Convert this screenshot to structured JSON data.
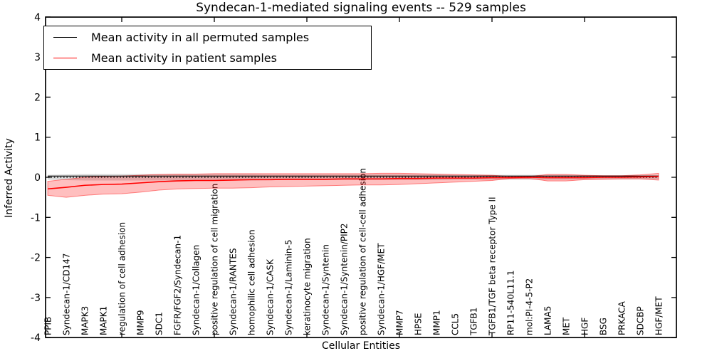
{
  "chart_data": {
    "type": "line",
    "title": "Syndecan-1-mediated signaling events -- 529 samples",
    "xlabel": "Cellular Entities",
    "ylabel": "Inferred Activity",
    "ylim": [
      -4,
      4
    ],
    "yticks": [
      4,
      3,
      2,
      1,
      0,
      -1,
      -2,
      -3,
      -4
    ],
    "xtick_major_indices": [
      4,
      9,
      14,
      19,
      24,
      29
    ],
    "grid": false,
    "legend_position": "upper left",
    "legend": [
      {
        "label": "Mean activity in all permuted samples",
        "color": "#000000"
      },
      {
        "label": "Mean activity in patient samples",
        "color": "#ff0000"
      }
    ],
    "categories": [
      "PPIB",
      "Syndecan-1/CD147",
      "MAPK3",
      "MAPK1",
      "regulation of cell adhesion",
      "MMP9",
      "SDC1",
      "FGFR/FGF2/Syndecan-1",
      "Syndecan-1/Collagen",
      "positive regulation of cell migration",
      "Syndecan-1/RANTES",
      "homophilic cell adhesion",
      "Syndecan-1/CASK",
      "Syndecan-1/Laminin-5",
      "keratinocyte migration",
      "Syndecan-1/Syntenin",
      "Syndecan-1/Syntenin/PIP2",
      "positive regulation of cell-cell adhesion",
      "Syndecan-1/HGF/MET",
      "MMP7",
      "HPSE",
      "MMP1",
      "CCL5",
      "TGFB1",
      "TGFB1/TGF beta receptor Type II",
      "RP11-540L11.1",
      "mol:PI-4-5-P2",
      "LAMA5",
      "MET",
      "HGF",
      "BSG",
      "PRKACA",
      "SDCBP",
      "HGF/MET"
    ],
    "series": [
      {
        "name": "zero-baseline",
        "color": "#000000",
        "style": "dotted",
        "width": 1.3,
        "constant": 0
      },
      {
        "name": "Mean activity in all permuted samples",
        "color": "#000000",
        "style": "solid",
        "width": 1.2,
        "constant": 0.03
      },
      {
        "name": "Mean activity in patient samples",
        "color": "#ff0000",
        "style": "solid",
        "width": 1.6,
        "values": [
          -0.29,
          -0.25,
          -0.2,
          -0.18,
          -0.17,
          -0.14,
          -0.11,
          -0.09,
          -0.08,
          -0.08,
          -0.07,
          -0.06,
          -0.06,
          -0.05,
          -0.05,
          -0.05,
          -0.04,
          -0.04,
          -0.04,
          -0.03,
          -0.03,
          -0.02,
          -0.02,
          -0.02,
          -0.01,
          -0.01,
          0.0,
          -0.01,
          -0.01,
          -0.01,
          0.0,
          0.0,
          0.01,
          0.02
        ]
      }
    ],
    "bands": [
      {
        "name": "permuted-samples-range",
        "color": "#000000",
        "opacity": 0.15,
        "edge_opacity": 0,
        "high": [
          0.06,
          0.07,
          0.08,
          0.08,
          0.08,
          0.08,
          0.08,
          0.08,
          0.08,
          0.08,
          0.08,
          0.08,
          0.07,
          0.07,
          0.07,
          0.07,
          0.07,
          0.07,
          0.07,
          0.07,
          0.07,
          0.07,
          0.06,
          0.06,
          0.06,
          0.06,
          0.06,
          0.06,
          0.06,
          0.05,
          0.05,
          0.05,
          0.05,
          0.05
        ],
        "low": [
          -0.06,
          -0.07,
          -0.08,
          -0.08,
          -0.08,
          -0.08,
          -0.08,
          -0.08,
          -0.08,
          -0.08,
          -0.08,
          -0.08,
          -0.07,
          -0.07,
          -0.07,
          -0.07,
          -0.07,
          -0.07,
          -0.07,
          -0.07,
          -0.07,
          -0.07,
          -0.06,
          -0.06,
          -0.06,
          -0.06,
          -0.06,
          -0.06,
          -0.06,
          -0.05,
          -0.05,
          -0.05,
          -0.05,
          -0.05
        ]
      },
      {
        "name": "patient-samples-range",
        "color": "#ff0000",
        "opacity": 0.25,
        "edge_opacity": 0.45,
        "high": [
          -0.1,
          -0.05,
          0.0,
          0.02,
          0.03,
          0.05,
          0.07,
          0.08,
          0.08,
          0.09,
          0.09,
          0.09,
          0.09,
          0.09,
          0.09,
          0.09,
          0.09,
          0.09,
          0.1,
          0.1,
          0.09,
          0.08,
          0.07,
          0.06,
          0.05,
          0.02,
          0.02,
          0.07,
          0.07,
          0.05,
          0.04,
          0.04,
          0.06,
          0.1
        ],
        "low": [
          -0.45,
          -0.5,
          -0.45,
          -0.42,
          -0.41,
          -0.37,
          -0.32,
          -0.29,
          -0.28,
          -0.27,
          -0.27,
          -0.26,
          -0.24,
          -0.23,
          -0.22,
          -0.21,
          -0.2,
          -0.19,
          -0.19,
          -0.18,
          -0.16,
          -0.14,
          -0.12,
          -0.1,
          -0.08,
          -0.03,
          -0.03,
          -0.09,
          -0.09,
          -0.06,
          -0.05,
          -0.04,
          -0.04,
          -0.07
        ]
      }
    ]
  }
}
